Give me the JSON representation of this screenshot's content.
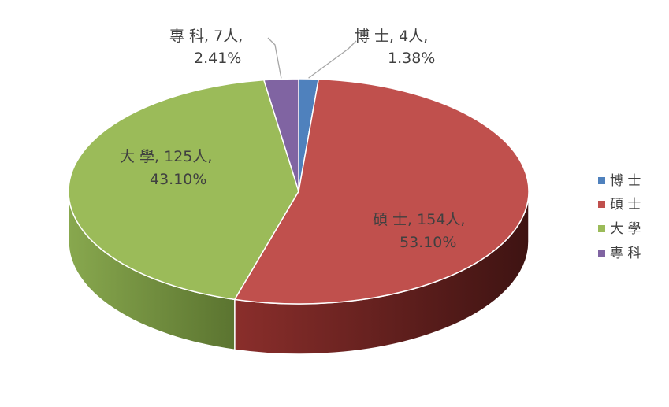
{
  "chart_data": {
    "type": "pie",
    "style": "3d",
    "title": "",
    "categories": [
      "博  士",
      "碩  士",
      "大  學",
      "專  科"
    ],
    "slices": [
      {
        "name": "博  士",
        "value": 4,
        "unit": "人",
        "percent": "1.38%",
        "color": "#4F81BD"
      },
      {
        "name": "碩  士",
        "value": 154,
        "unit": "人",
        "percent": "53.10%",
        "color": "#C0504D"
      },
      {
        "name": "大  學",
        "value": 125,
        "unit": "人",
        "percent": "43.10%",
        "color": "#9BBB59"
      },
      {
        "name": "專  科",
        "value": 7,
        "unit": "人",
        "percent": "2.41%",
        "color": "#8064A2"
      }
    ],
    "data_labels": [
      {
        "line1": "博  士, 4人,",
        "line2": "1.38%"
      },
      {
        "line1": "碩  士, 154人,",
        "line2": "53.10%"
      },
      {
        "line1": "大  學, 125人,",
        "line2": "43.10%"
      },
      {
        "line1": "專  科, 7人,",
        "line2": "2.41%"
      }
    ],
    "legend": {
      "position": "right",
      "entries": [
        "博  士",
        "碩  士",
        "大  學",
        "專  科"
      ]
    }
  }
}
